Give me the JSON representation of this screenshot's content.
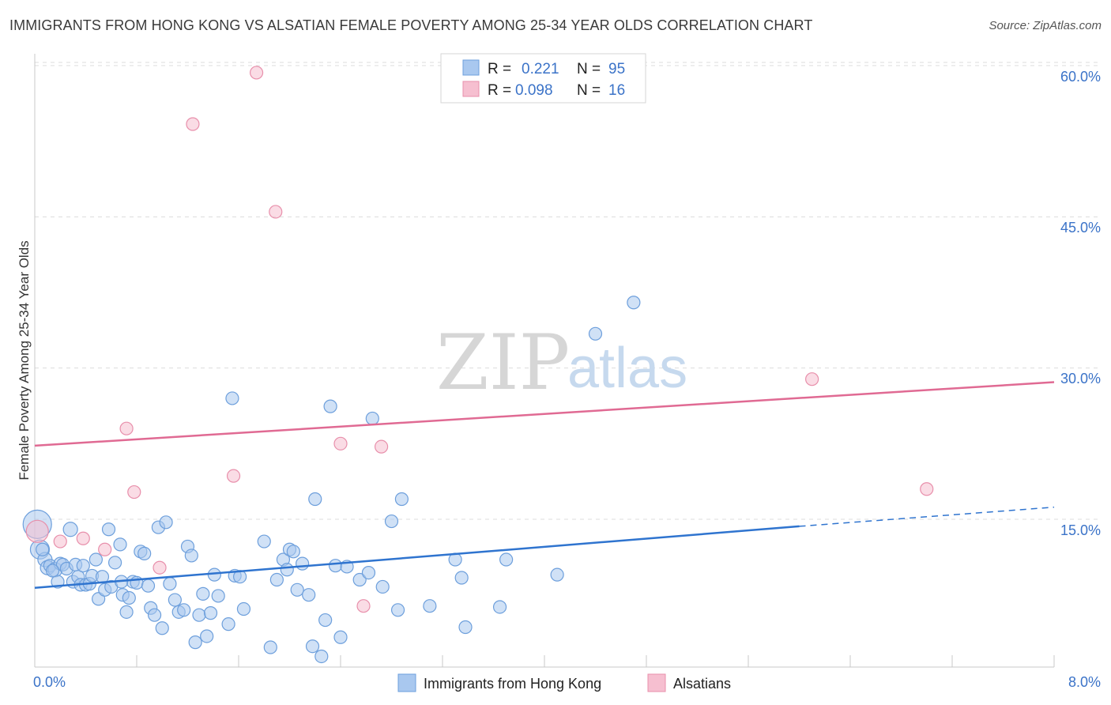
{
  "header": {
    "title": "IMMIGRANTS FROM HONG KONG VS ALSATIAN FEMALE POVERTY AMONG 25-34 YEAR OLDS CORRELATION CHART",
    "source": "Source: ZipAtlas.com"
  },
  "watermark": {
    "zip": "ZIP",
    "atlas": "atlas"
  },
  "colors": {
    "blue_fill": "#a9c8ef",
    "blue_stroke": "#6d9fdc",
    "blue_line": "#2f74cf",
    "pink_fill": "#f6bfd0",
    "pink_stroke": "#e88fab",
    "pink_line": "#e06a93",
    "grid": "#dcdcdc",
    "tick_text": "#3b73c8"
  },
  "chart_data": {
    "type": "scatter",
    "title": "IMMIGRANTS FROM HONG KONG VS ALSATIAN FEMALE POVERTY AMONG 25-34 YEAR OLDS CORRELATION CHART",
    "xlabel": "",
    "ylabel": "Female Poverty Among 25-34 Year Olds",
    "xlim": [
      0,
      8
    ],
    "ylim": [
      0,
      60
    ],
    "x_tick_labels": [
      "0.0%",
      "8.0%"
    ],
    "y_ticks": [
      15,
      30,
      45,
      60
    ],
    "y_tick_labels": [
      "15.0%",
      "30.0%",
      "45.0%",
      "60.0%"
    ],
    "legend_position": "bottom",
    "stats": [
      {
        "r_label": "R =",
        "r_value": "0.221",
        "n_label": "N =",
        "n_value": "95"
      },
      {
        "r_label": "R =",
        "r_value": "0.098",
        "n_label": "N =",
        "n_value": "16"
      }
    ],
    "series": [
      {
        "name": "Immigrants from Hong Kong",
        "color": "blue",
        "trend": {
          "x0": 0,
          "y0": 8.2,
          "x1": 6.0,
          "y1": 14.3,
          "dashed_to_x": 8.0,
          "dashed_to_y": 16.2
        },
        "points": [
          [
            0.02,
            14.5,
            18
          ],
          [
            0.04,
            12.0,
            12
          ],
          [
            0.08,
            11.0,
            9
          ],
          [
            0.1,
            10.2,
            9
          ],
          [
            0.12,
            10.4,
            8
          ],
          [
            0.16,
            10.0,
            9
          ],
          [
            0.18,
            8.8,
            8
          ],
          [
            0.2,
            10.6,
            8
          ],
          [
            0.22,
            10.5,
            8
          ],
          [
            0.25,
            10.1,
            8
          ],
          [
            0.28,
            14.0,
            9
          ],
          [
            0.3,
            8.8,
            8
          ],
          [
            0.32,
            10.5,
            8
          ],
          [
            0.34,
            9.3,
            8
          ],
          [
            0.36,
            8.5,
            8
          ],
          [
            0.38,
            10.4,
            8
          ],
          [
            0.4,
            8.5,
            8
          ],
          [
            0.43,
            8.6,
            8
          ],
          [
            0.45,
            9.4,
            8
          ],
          [
            0.48,
            11.0,
            8
          ],
          [
            0.5,
            7.1,
            8
          ],
          [
            0.53,
            9.3,
            8
          ],
          [
            0.55,
            8.0,
            8
          ],
          [
            0.58,
            14.0,
            8
          ],
          [
            0.6,
            8.3,
            8
          ],
          [
            0.63,
            10.7,
            8
          ],
          [
            0.67,
            12.5,
            8
          ],
          [
            0.69,
            7.5,
            8
          ],
          [
            0.72,
            5.8,
            8
          ],
          [
            0.74,
            7.2,
            8
          ],
          [
            0.77,
            8.8,
            8
          ],
          [
            0.8,
            8.7,
            8
          ],
          [
            0.83,
            11.8,
            8
          ],
          [
            0.86,
            11.6,
            8
          ],
          [
            0.89,
            8.4,
            8
          ],
          [
            0.91,
            6.2,
            8
          ],
          [
            0.94,
            5.5,
            8
          ],
          [
            0.97,
            14.2,
            8
          ],
          [
            1.0,
            4.2,
            8
          ],
          [
            1.03,
            14.7,
            8
          ],
          [
            1.06,
            8.6,
            8
          ],
          [
            1.1,
            7.0,
            8
          ],
          [
            1.13,
            5.8,
            8
          ],
          [
            1.17,
            6.0,
            8
          ],
          [
            1.2,
            12.3,
            8
          ],
          [
            1.23,
            11.4,
            8
          ],
          [
            1.26,
            2.8,
            8
          ],
          [
            1.29,
            5.5,
            8
          ],
          [
            1.32,
            7.6,
            8
          ],
          [
            1.35,
            3.4,
            8
          ],
          [
            1.38,
            5.7,
            8
          ],
          [
            1.41,
            9.5,
            8
          ],
          [
            1.44,
            7.4,
            8
          ],
          [
            1.52,
            4.6,
            8
          ],
          [
            1.55,
            27.0,
            8
          ],
          [
            1.57,
            9.4,
            8
          ],
          [
            1.61,
            9.3,
            8
          ],
          [
            1.64,
            6.1,
            8
          ],
          [
            1.8,
            12.8,
            8
          ],
          [
            1.85,
            2.3,
            8
          ],
          [
            1.9,
            9.0,
            8
          ],
          [
            1.95,
            11.0,
            8
          ],
          [
            1.98,
            10.0,
            8
          ],
          [
            2.0,
            12.0,
            8
          ],
          [
            2.03,
            11.8,
            8
          ],
          [
            2.06,
            8.0,
            8
          ],
          [
            2.1,
            10.6,
            8
          ],
          [
            2.15,
            7.5,
            8
          ],
          [
            2.18,
            2.4,
            8
          ],
          [
            2.2,
            17.0,
            8
          ],
          [
            2.25,
            1.4,
            8
          ],
          [
            2.28,
            5.0,
            8
          ],
          [
            2.32,
            26.2,
            8
          ],
          [
            2.36,
            10.4,
            8
          ],
          [
            2.4,
            3.3,
            8
          ],
          [
            2.45,
            10.3,
            8
          ],
          [
            2.55,
            9.0,
            8
          ],
          [
            2.62,
            9.7,
            8
          ],
          [
            2.65,
            25.0,
            8
          ],
          [
            2.73,
            8.3,
            8
          ],
          [
            2.8,
            14.8,
            8
          ],
          [
            2.85,
            6.0,
            8
          ],
          [
            2.88,
            17.0,
            8
          ],
          [
            3.1,
            6.4,
            8
          ],
          [
            3.3,
            11.0,
            8
          ],
          [
            3.35,
            9.2,
            8
          ],
          [
            3.38,
            4.3,
            8
          ],
          [
            3.65,
            6.3,
            8
          ],
          [
            3.7,
            11.0,
            8
          ],
          [
            4.1,
            9.5,
            8
          ],
          [
            4.4,
            33.4,
            8
          ],
          [
            4.7,
            36.5,
            8
          ],
          [
            0.06,
            12.0,
            8
          ],
          [
            0.14,
            9.9,
            8
          ],
          [
            0.68,
            8.8,
            8
          ]
        ]
      },
      {
        "name": "Alsatians",
        "color": "pink",
        "trend": {
          "x0": 0,
          "y0": 22.3,
          "x1": 8.0,
          "y1": 28.6
        },
        "points": [
          [
            0.02,
            13.8,
            14
          ],
          [
            0.2,
            12.8,
            8
          ],
          [
            0.38,
            13.1,
            8
          ],
          [
            0.55,
            12.0,
            8
          ],
          [
            0.72,
            24.0,
            8
          ],
          [
            0.78,
            17.7,
            8
          ],
          [
            0.98,
            10.2,
            8
          ],
          [
            1.24,
            54.2,
            8
          ],
          [
            1.56,
            19.3,
            8
          ],
          [
            1.74,
            59.3,
            8
          ],
          [
            1.89,
            45.5,
            8
          ],
          [
            2.4,
            22.5,
            8
          ],
          [
            2.58,
            6.4,
            8
          ],
          [
            2.72,
            22.2,
            8
          ],
          [
            6.1,
            28.9,
            8
          ],
          [
            7.0,
            18.0,
            8
          ]
        ]
      }
    ]
  }
}
